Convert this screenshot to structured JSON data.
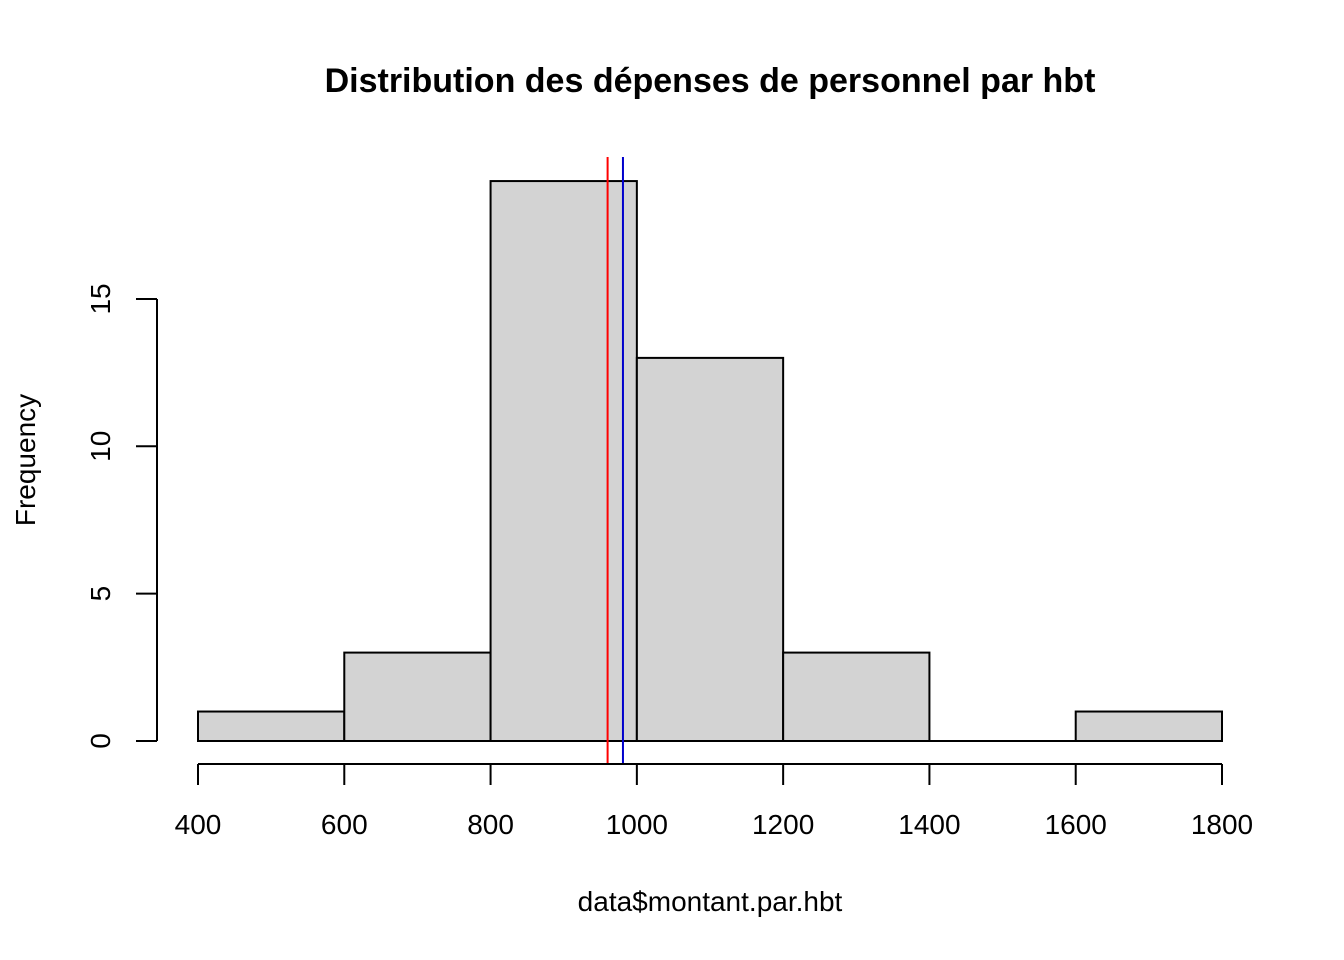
{
  "chart_data": {
    "type": "bar",
    "title": "Distribution des dépenses de personnel par hbt",
    "xlabel": "data$montant.par.hbt",
    "ylabel": "Frequency",
    "bins": [
      {
        "from": 400,
        "to": 600,
        "count": 1
      },
      {
        "from": 600,
        "to": 800,
        "count": 3
      },
      {
        "from": 800,
        "to": 1000,
        "count": 19
      },
      {
        "from": 1000,
        "to": 1200,
        "count": 13
      },
      {
        "from": 1200,
        "to": 1400,
        "count": 3
      },
      {
        "from": 1400,
        "to": 1600,
        "count": 0
      },
      {
        "from": 1600,
        "to": 1800,
        "count": 1
      }
    ],
    "xlim": [
      400,
      1800
    ],
    "ylim": [
      0,
      19
    ],
    "x_ticks": [
      400,
      600,
      800,
      1000,
      1200,
      1400,
      1600,
      1800
    ],
    "y_ticks": [
      0,
      5,
      10,
      15
    ],
    "grid": false,
    "vlines": [
      {
        "x": 960,
        "color": "#ff0000"
      },
      {
        "x": 981,
        "color": "#0000cc"
      }
    ],
    "bar_fill": "#d3d3d3",
    "bar_stroke": "#000000"
  }
}
